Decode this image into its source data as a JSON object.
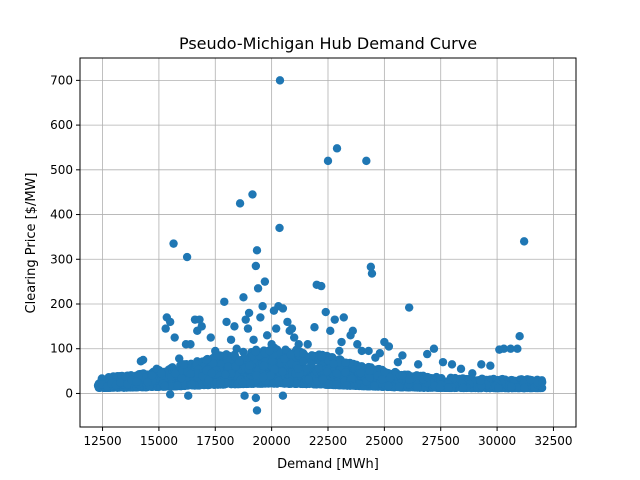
{
  "chart_data": {
    "type": "scatter",
    "title": "Pseudo-Michigan Hub Demand Curve",
    "xlabel": "Demand [MWh]",
    "ylabel": "Clearing Price [$/MW]",
    "xlim": [
      11500,
      33500
    ],
    "ylim": [
      -75,
      750
    ],
    "x_ticks": [
      12500,
      15000,
      17500,
      20000,
      22500,
      25000,
      27500,
      30000,
      32500
    ],
    "y_ticks": [
      0,
      100,
      200,
      300,
      400,
      500,
      600,
      700
    ],
    "grid": true,
    "marker_color": "#1f77b4",
    "series": [
      {
        "points": [
          [
            12300,
            18
          ],
          [
            12500,
            20
          ],
          [
            12700,
            16
          ],
          [
            12900,
            22
          ],
          [
            13100,
            19
          ],
          [
            13300,
            24
          ],
          [
            13500,
            38
          ],
          [
            13600,
            21
          ],
          [
            13800,
            30
          ],
          [
            14000,
            26
          ],
          [
            14200,
            72
          ],
          [
            14300,
            75
          ],
          [
            14500,
            25
          ],
          [
            14700,
            40
          ],
          [
            14900,
            55
          ],
          [
            15100,
            45
          ],
          [
            15300,
            145
          ],
          [
            15350,
            170
          ],
          [
            15500,
            160
          ],
          [
            15650,
            335
          ],
          [
            15700,
            125
          ],
          [
            15900,
            78
          ],
          [
            16100,
            65
          ],
          [
            16200,
            110
          ],
          [
            16250,
            305
          ],
          [
            16400,
            110
          ],
          [
            16600,
            165
          ],
          [
            16700,
            140
          ],
          [
            16800,
            165
          ],
          [
            16900,
            150
          ],
          [
            17100,
            75
          ],
          [
            17300,
            125
          ],
          [
            17500,
            95
          ],
          [
            17700,
            85
          ],
          [
            17900,
            205
          ],
          [
            18000,
            160
          ],
          [
            18200,
            120
          ],
          [
            18350,
            150
          ],
          [
            18450,
            100
          ],
          [
            18600,
            425
          ],
          [
            18750,
            215
          ],
          [
            18850,
            165
          ],
          [
            18950,
            145
          ],
          [
            19000,
            180
          ],
          [
            19150,
            445
          ],
          [
            19200,
            120
          ],
          [
            19300,
            285
          ],
          [
            19350,
            320
          ],
          [
            19400,
            235
          ],
          [
            19500,
            170
          ],
          [
            19600,
            195
          ],
          [
            19700,
            250
          ],
          [
            19800,
            130
          ],
          [
            19900,
            95
          ],
          [
            20000,
            110
          ],
          [
            20100,
            185
          ],
          [
            20200,
            145
          ],
          [
            20300,
            195
          ],
          [
            20350,
            370
          ],
          [
            20370,
            700
          ],
          [
            20500,
            190
          ],
          [
            20700,
            160
          ],
          [
            20800,
            140
          ],
          [
            20900,
            145
          ],
          [
            21000,
            125
          ],
          [
            21200,
            110
          ],
          [
            21400,
            90
          ],
          [
            21600,
            110
          ],
          [
            21900,
            148
          ],
          [
            22000,
            243
          ],
          [
            22200,
            240
          ],
          [
            22400,
            182
          ],
          [
            22500,
            520
          ],
          [
            22600,
            140
          ],
          [
            22800,
            165
          ],
          [
            22900,
            548
          ],
          [
            23000,
            95
          ],
          [
            23100,
            115
          ],
          [
            23200,
            170
          ],
          [
            23500,
            130
          ],
          [
            23600,
            140
          ],
          [
            23800,
            110
          ],
          [
            24000,
            95
          ],
          [
            24200,
            520
          ],
          [
            24300,
            95
          ],
          [
            24400,
            283
          ],
          [
            24450,
            268
          ],
          [
            24600,
            80
          ],
          [
            24800,
            90
          ],
          [
            25000,
            115
          ],
          [
            25200,
            105
          ],
          [
            25600,
            70
          ],
          [
            25800,
            85
          ],
          [
            26100,
            192
          ],
          [
            26500,
            65
          ],
          [
            26900,
            88
          ],
          [
            27200,
            100
          ],
          [
            27600,
            70
          ],
          [
            28000,
            65
          ],
          [
            28400,
            55
          ],
          [
            28900,
            45
          ],
          [
            29300,
            65
          ],
          [
            29700,
            62
          ],
          [
            30100,
            98
          ],
          [
            30300,
            100
          ],
          [
            30600,
            100
          ],
          [
            30900,
            100
          ],
          [
            31000,
            128
          ],
          [
            31200,
            340
          ],
          [
            31500,
            30
          ],
          [
            31800,
            25
          ],
          [
            32000,
            25
          ],
          [
            15500,
            -2
          ],
          [
            16300,
            -5
          ],
          [
            18800,
            -5
          ],
          [
            19300,
            -10
          ],
          [
            19350,
            -38
          ],
          [
            20500,
            -5
          ]
        ]
      }
    ]
  }
}
